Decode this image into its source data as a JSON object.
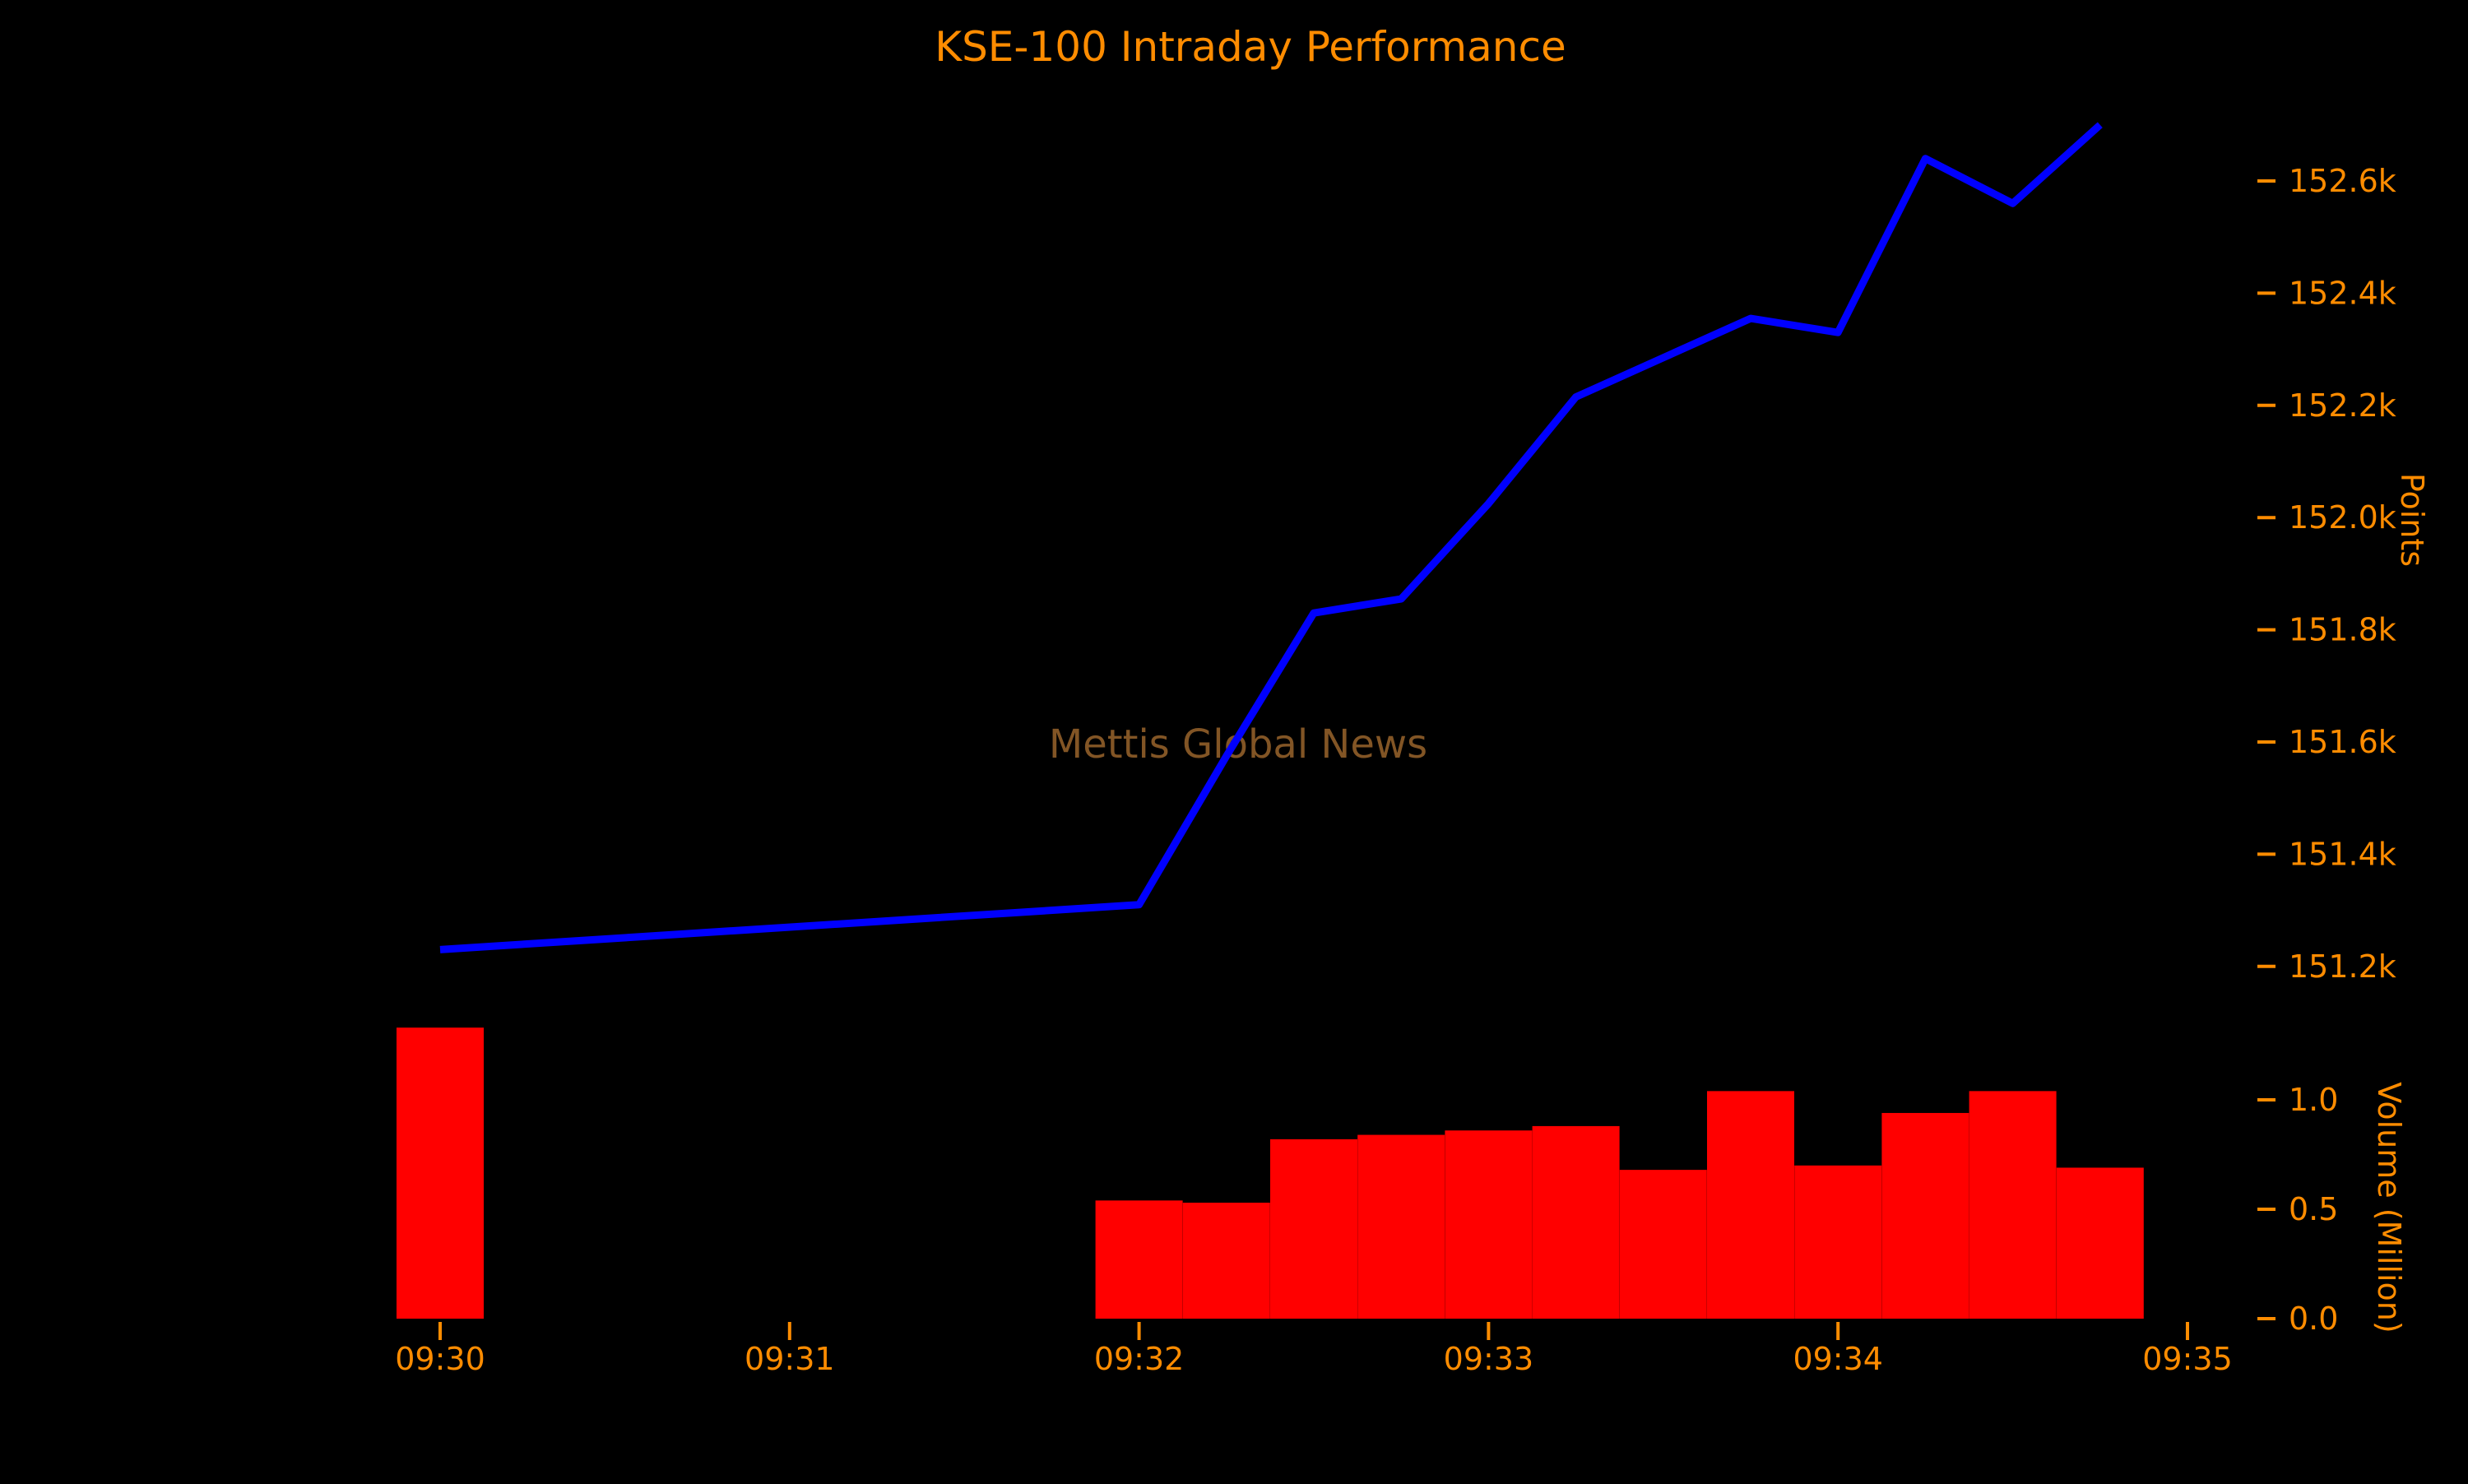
{
  "colors": {
    "background": "#000000",
    "accent_orange": "#ff8c00",
    "line_blue": "#0000ff",
    "bar_red": "#ff0000",
    "watermark_brown": "#8a5a28"
  },
  "chart_data": {
    "type": "line+bar",
    "title": "KSE-100 Intraday Performance",
    "watermark": "Mettis Global News",
    "legend": "none",
    "grid": false,
    "x_axis": {
      "tick_labels": [
        "09:30",
        "09:31",
        "09:32",
        "09:33",
        "09:34",
        "09:35"
      ]
    },
    "points_axis": {
      "label": "Points",
      "side": "right",
      "tick_labels": [
        "152.6k",
        "152.4k",
        "152.2k",
        "152.0k",
        "151.8k",
        "151.6k",
        "151.4k",
        "151.2k"
      ],
      "tick_values": [
        152600,
        152400,
        152200,
        152000,
        151800,
        151600,
        151400,
        151200
      ],
      "approx_range": [
        151100,
        152750
      ]
    },
    "volume_axis": {
      "label": "Volume (Million)",
      "side": "right",
      "tick_labels": [
        "1.0",
        "0.5",
        "0.0"
      ],
      "tick_values": [
        1.0,
        0.5,
        0.0
      ],
      "approx_range": [
        0,
        1.4
      ]
    },
    "series": [
      {
        "name": "KSE-100 Index (Points)",
        "type": "line",
        "color": "#0000ff",
        "points": [
          {
            "time": "09:30:00",
            "value": 151230
          },
          {
            "time": "09:32:00",
            "value": 151310
          },
          {
            "time": "09:32:15",
            "value": 151575
          },
          {
            "time": "09:32:30",
            "value": 151830
          },
          {
            "time": "09:32:45",
            "value": 151855
          },
          {
            "time": "09:33:00",
            "value": 152025
          },
          {
            "time": "09:33:15",
            "value": 152215
          },
          {
            "time": "09:33:30",
            "value": 152285
          },
          {
            "time": "09:33:45",
            "value": 152355
          },
          {
            "time": "09:34:00",
            "value": 152330
          },
          {
            "time": "09:34:15",
            "value": 152640
          },
          {
            "time": "09:34:30",
            "value": 152560
          },
          {
            "time": "09:34:45",
            "value": 152700
          }
        ]
      },
      {
        "name": "Volume (Million)",
        "type": "bar",
        "color": "#ff0000",
        "points": [
          {
            "time": "09:30:00",
            "value": 1.33
          },
          {
            "time": "09:32:00",
            "value": 0.54
          },
          {
            "time": "09:32:15",
            "value": 0.53
          },
          {
            "time": "09:32:30",
            "value": 0.82
          },
          {
            "time": "09:32:45",
            "value": 0.84
          },
          {
            "time": "09:33:00",
            "value": 0.86
          },
          {
            "time": "09:33:15",
            "value": 0.88
          },
          {
            "time": "09:33:30",
            "value": 0.68
          },
          {
            "time": "09:33:45",
            "value": 1.04
          },
          {
            "time": "09:34:00",
            "value": 0.7
          },
          {
            "time": "09:34:15",
            "value": 0.94
          },
          {
            "time": "09:34:30",
            "value": 1.04
          },
          {
            "time": "09:34:45",
            "value": 0.69
          }
        ]
      }
    ]
  }
}
